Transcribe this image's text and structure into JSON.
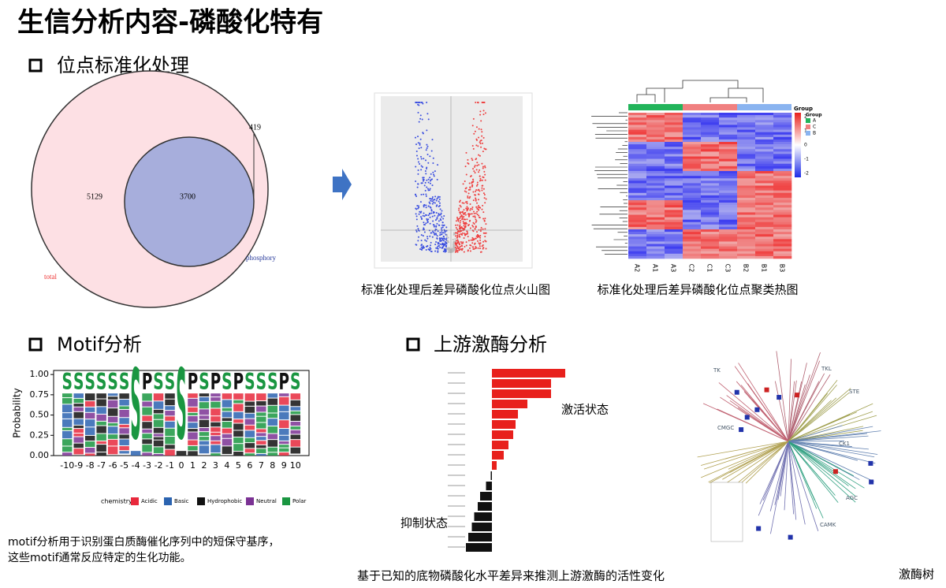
{
  "header": {
    "title": "生信分析内容-磷酸化特有"
  },
  "sections": [
    "位点标准化处理",
    "Motif分析",
    "上游激酶分析"
  ],
  "venn": {
    "left_only": "5129",
    "overlap": "3700",
    "right_only": "419",
    "left_label": "total",
    "right_label": "phosphory"
  },
  "captions": {
    "volcano": "标准化处理后差异磷酸化位点火山图",
    "heatmap": "标准化处理后差异磷酸化位点聚类热图",
    "motif": [
      "motif分析用于识别蛋白质酶催化序列中的短保守基序，",
      "这些motif通常反应特定的生化功能。"
    ],
    "kinase": "基于已知的底物磷酸化水平差异来推测上游激酶的活性变化",
    "tree": "激酶树"
  },
  "heatmap": {
    "samples": [
      "A2",
      "A1",
      "A3",
      "C2",
      "C1",
      "C3",
      "B2",
      "B1",
      "B3"
    ],
    "legend_title": "Group",
    "groups": [
      "A",
      "C",
      "B"
    ],
    "scale_ticks": [
      2,
      1,
      0,
      -1,
      -2
    ]
  },
  "motif": {
    "ylabel": "Probability",
    "ylim": [
      0,
      1.05
    ],
    "yticks": [
      {
        "value": 0,
        "label": "0.00"
      },
      {
        "value": 0.25,
        "label": "0.25"
      },
      {
        "value": 0.5,
        "label": "0.50"
      },
      {
        "value": 0.75,
        "label": "0.75"
      },
      {
        "value": 1,
        "label": "1.00"
      }
    ],
    "xticks": [
      -10,
      -9,
      -8,
      -7,
      -6,
      -5,
      -4,
      -3,
      -2,
      -1,
      0,
      1,
      2,
      3,
      4,
      5,
      6,
      7,
      8,
      9,
      10
    ],
    "top_letters": [
      "S",
      "S",
      "S",
      "S",
      "S",
      "S",
      "S",
      "P",
      "S",
      "S",
      "S",
      "P",
      "S",
      "P",
      "S",
      "P",
      "S",
      "S",
      "S",
      "P",
      "S"
    ],
    "legend_title": "chemistry",
    "legend": [
      {
        "name": "Acidic",
        "color": "#e8283c"
      },
      {
        "name": "Basic",
        "color": "#2b63b0"
      },
      {
        "name": "Hydrophobic",
        "color": "#111111"
      },
      {
        "name": "Neutral",
        "color": "#7b3294"
      },
      {
        "name": "Polar",
        "color": "#1a9641"
      }
    ]
  },
  "kinase": {
    "up_label": "激活状态",
    "down_label": "抑制状态",
    "values": [
      3.1,
      2.5,
      2.5,
      1.5,
      1.1,
      1.0,
      0.9,
      0.7,
      0.5,
      0.2,
      -0.05,
      -0.25,
      -0.5,
      -0.6,
      -0.75,
      -0.85,
      -1.0,
      -1.1
    ],
    "colors": {
      "up": "#e8201c",
      "down": "#111111"
    }
  },
  "tree": {
    "families": [
      "TK",
      "TKL",
      "STE",
      "CK1",
      "AGC",
      "CAMK",
      "CMGC"
    ]
  }
}
